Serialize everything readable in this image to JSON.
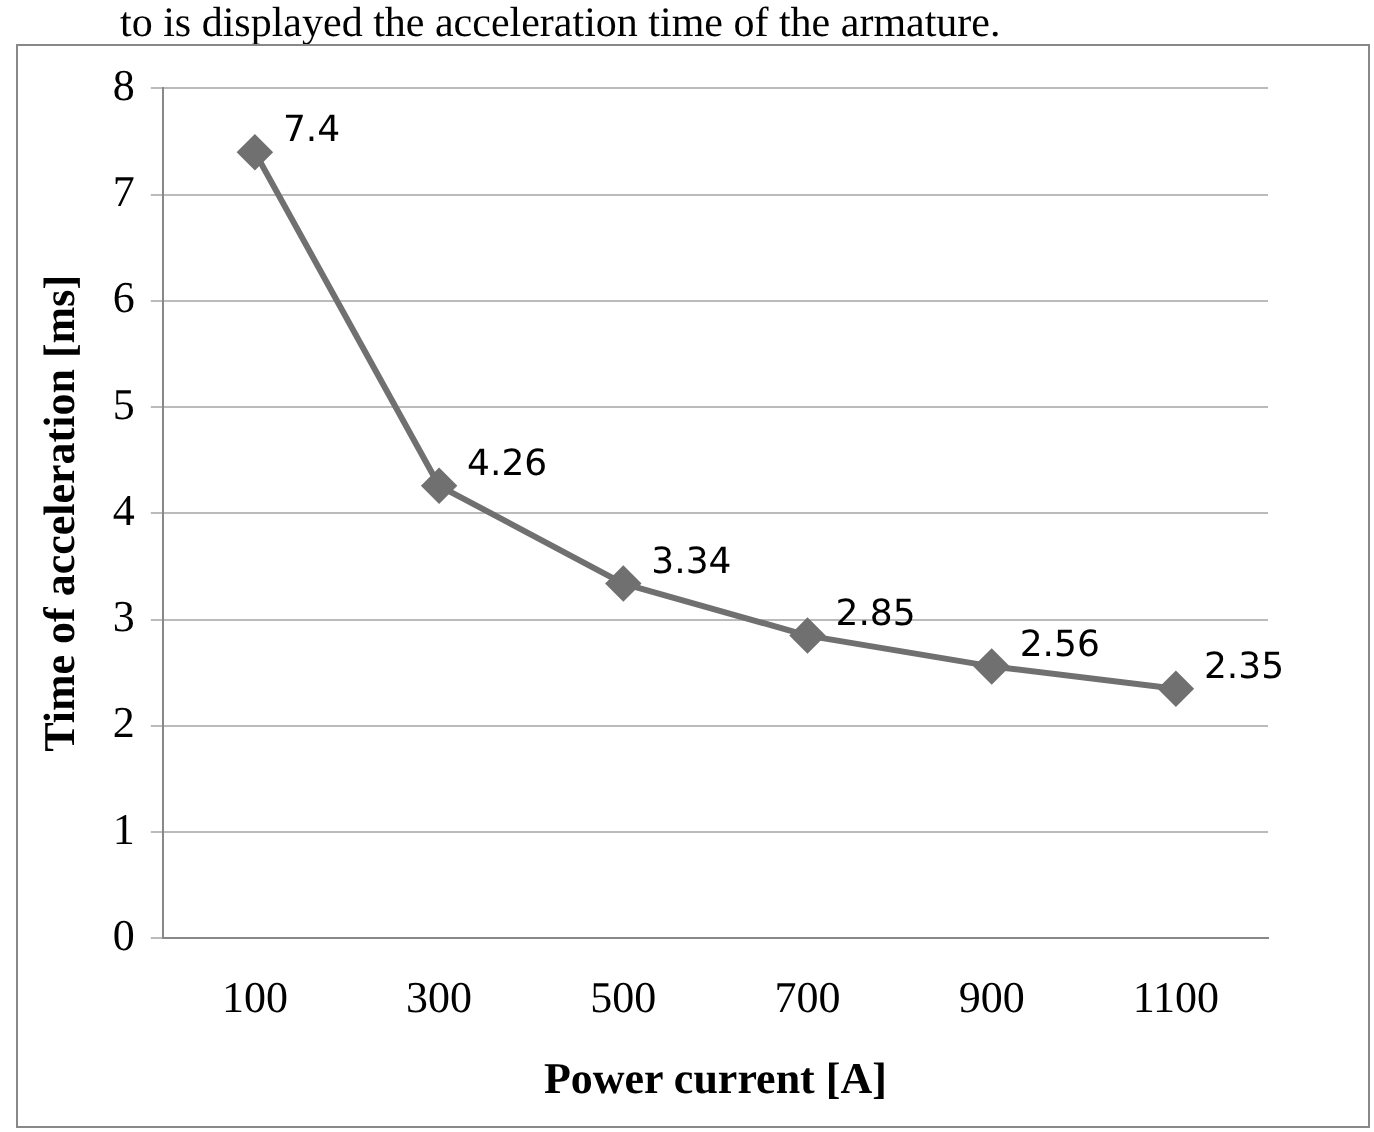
{
  "chart_data": {
    "type": "line",
    "annotations": [
      "to is displayed the acceleration time of the armature."
    ],
    "xlabel": "Power current [A]",
    "ylabel": "Time of acceleration [ms]",
    "categories": [
      "100",
      "300",
      "500",
      "700",
      "900",
      "1100"
    ],
    "series": [
      {
        "color": "#707070",
        "values": [
          7.4,
          4.26,
          3.34,
          2.85,
          2.56,
          2.35
        ]
      }
    ],
    "ylim": [
      0,
      8
    ],
    "yticks": [
      0,
      1,
      2,
      3,
      4,
      5,
      6,
      7,
      8
    ],
    "grid": "y",
    "legend": false,
    "marker": "diamond",
    "line_style": "solid",
    "data_labels": true
  }
}
